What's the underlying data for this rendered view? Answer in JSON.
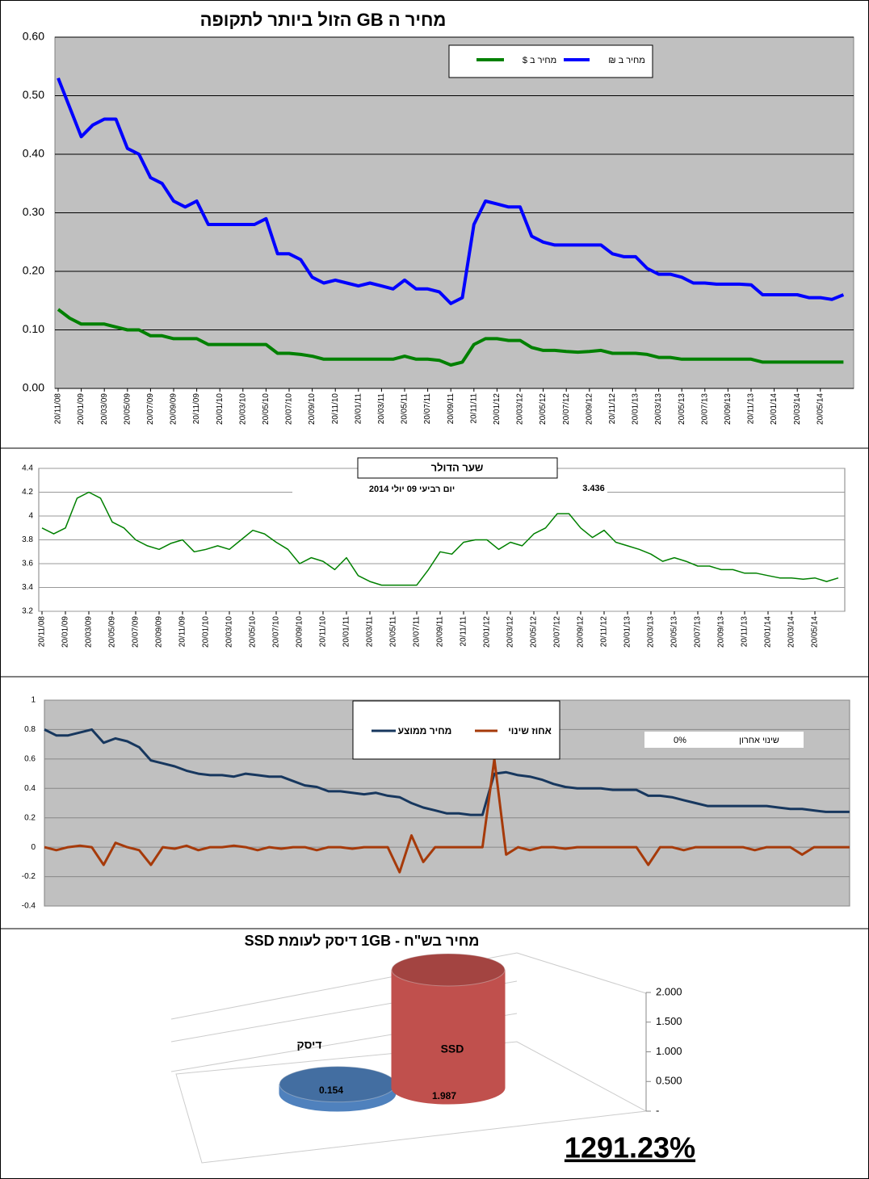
{
  "chart_data": [
    {
      "type": "line",
      "title": "מחיר ה GB הזול ביותר לתקופה",
      "categories": [
        "20/11/08",
        null,
        "20/01/09",
        null,
        "20/03/09",
        null,
        "20/05/09",
        null,
        "20/07/09",
        null,
        "20/09/09",
        null,
        "20/11/09",
        null,
        "20/01/10",
        null,
        "20/03/10",
        null,
        "20/05/10",
        null,
        "20/07/10",
        null,
        "20/09/10",
        null,
        "20/11/10",
        null,
        "20/01/11",
        null,
        "20/03/11",
        null,
        "20/05/11",
        null,
        "20/07/11",
        null,
        "20/09/11",
        null,
        "20/11/11",
        null,
        "20/01/12",
        null,
        "20/03/12",
        null,
        "20/05/12",
        null,
        "20/07/12",
        null,
        "20/09/12",
        null,
        "20/11/12",
        null,
        "20/01/13",
        null,
        "20/03/13",
        null,
        "20/05/13",
        null,
        "20/07/13",
        null,
        "20/09/13",
        null,
        "20/11/13",
        null,
        "20/01/14",
        null,
        "20/03/14",
        null,
        "20/05/14",
        null,
        null
      ],
      "series": [
        {
          "name": "מחיר ב $",
          "color": "#008000",
          "values": [
            0.135,
            0.12,
            0.11,
            0.11,
            0.11,
            0.105,
            0.1,
            0.1,
            0.09,
            0.09,
            0.085,
            0.085,
            0.085,
            0.075,
            0.075,
            0.075,
            0.075,
            0.075,
            0.075,
            0.06,
            0.06,
            0.058,
            0.055,
            0.05,
            0.05,
            0.05,
            0.05,
            0.05,
            0.05,
            0.05,
            0.055,
            0.05,
            0.05,
            0.048,
            0.04,
            0.045,
            0.075,
            0.085,
            0.085,
            0.082,
            0.082,
            0.07,
            0.065,
            0.065,
            0.063,
            0.062,
            0.063,
            0.065,
            0.06,
            0.06,
            0.06,
            0.058,
            0.053,
            0.053,
            0.05,
            0.05,
            0.05,
            0.05,
            0.05,
            0.05,
            0.05,
            0.045,
            0.045,
            0.045,
            0.045,
            0.045,
            0.045,
            0.045,
            0.045
          ]
        },
        {
          "name": "מחיר ב ₪",
          "color": "#0000ff",
          "values": [
            0.53,
            0.48,
            0.43,
            0.45,
            0.46,
            0.46,
            0.41,
            0.4,
            0.36,
            0.35,
            0.32,
            0.31,
            0.32,
            0.28,
            0.28,
            0.28,
            0.28,
            0.28,
            0.29,
            0.23,
            0.23,
            0.22,
            0.19,
            0.18,
            0.185,
            0.18,
            0.175,
            0.18,
            0.175,
            0.17,
            0.185,
            0.17,
            0.17,
            0.165,
            0.145,
            0.155,
            0.28,
            0.32,
            0.315,
            0.31,
            0.31,
            0.26,
            0.25,
            0.245,
            0.245,
            0.245,
            0.245,
            0.245,
            0.23,
            0.225,
            0.225,
            0.205,
            0.195,
            0.195,
            0.19,
            0.18,
            0.18,
            0.178,
            0.178,
            0.178,
            0.177,
            0.16,
            0.16,
            0.16,
            0.16,
            0.155,
            0.155,
            0.152,
            0.16
          ]
        }
      ],
      "ylim": [
        0,
        0.6
      ],
      "yticks": [
        {
          "value": 0,
          "label": "0.00"
        },
        {
          "value": 0.1,
          "label": "0.10"
        },
        {
          "value": 0.2,
          "label": "0.20"
        },
        {
          "value": 0.3,
          "label": "0.30"
        },
        {
          "value": 0.4,
          "label": "0.40"
        },
        {
          "value": 0.5,
          "label": "0.50"
        },
        {
          "value": 0.6,
          "label": "0.60"
        }
      ],
      "grid": true,
      "legend": "top-right"
    },
    {
      "type": "line",
      "title": "שער הדולר",
      "subtitle": "יום רביעי 09 יולי 2014",
      "annotation": "3.436",
      "categories": [
        "20/11/08",
        null,
        "20/01/09",
        null,
        "20/03/09",
        null,
        "20/05/09",
        null,
        "20/07/09",
        null,
        "20/09/09",
        null,
        "20/11/09",
        null,
        "20/01/10",
        null,
        "20/03/10",
        null,
        "20/05/10",
        null,
        "20/07/10",
        null,
        "20/09/10",
        null,
        "20/11/10",
        null,
        "20/01/11",
        null,
        "20/03/11",
        null,
        "20/05/11",
        null,
        "20/07/11",
        null,
        "20/09/11",
        null,
        "20/11/11",
        null,
        "20/01/12",
        null,
        "20/03/12",
        null,
        "20/05/12",
        null,
        "20/07/12",
        null,
        "20/09/12",
        null,
        "20/11/12",
        null,
        "20/01/13",
        null,
        "20/03/13",
        null,
        "20/05/13",
        null,
        "20/07/13",
        null,
        "20/09/13",
        null,
        "20/11/13",
        null,
        "20/01/14",
        null,
        "20/03/14",
        null,
        "20/05/14",
        null,
        null
      ],
      "color": "#008000",
      "values": [
        3.9,
        3.85,
        3.9,
        4.15,
        4.2,
        4.15,
        3.95,
        3.9,
        3.8,
        3.75,
        3.72,
        3.77,
        3.8,
        3.7,
        3.72,
        3.75,
        3.72,
        3.8,
        3.88,
        3.85,
        3.78,
        3.72,
        3.6,
        3.65,
        3.62,
        3.55,
        3.65,
        3.5,
        3.45,
        3.42,
        3.42,
        3.42,
        3.42,
        3.55,
        3.7,
        3.68,
        3.78,
        3.8,
        3.8,
        3.72,
        3.78,
        3.75,
        3.85,
        3.9,
        4.02,
        4.02,
        3.9,
        3.82,
        3.88,
        3.78,
        3.75,
        3.72,
        3.68,
        3.62,
        3.65,
        3.62,
        3.58,
        3.58,
        3.55,
        3.55,
        3.52,
        3.52,
        3.5,
        3.48,
        3.48,
        3.47,
        3.48,
        3.45,
        3.48
      ],
      "ylim": [
        3.2,
        4.4
      ],
      "yticks": [
        3.2,
        3.4,
        3.6,
        3.8,
        4,
        4.2,
        4.4
      ],
      "grid": true
    },
    {
      "type": "line",
      "series": [
        {
          "name": "מחיר ממוצע",
          "color": "#17375e",
          "values": [
            0.8,
            0.76,
            0.76,
            0.78,
            0.8,
            0.71,
            0.74,
            0.72,
            0.68,
            0.59,
            0.57,
            0.55,
            0.52,
            0.5,
            0.49,
            0.49,
            0.48,
            0.5,
            0.49,
            0.48,
            0.48,
            0.45,
            0.42,
            0.41,
            0.38,
            0.38,
            0.37,
            0.36,
            0.37,
            0.35,
            0.34,
            0.3,
            0.27,
            0.25,
            0.23,
            0.23,
            0.22,
            0.22,
            0.5,
            0.51,
            0.49,
            0.48,
            0.46,
            0.43,
            0.41,
            0.4,
            0.4,
            0.4,
            0.39,
            0.39,
            0.39,
            0.35,
            0.35,
            0.34,
            0.32,
            0.3,
            0.28,
            0.28,
            0.28,
            0.28,
            0.28,
            0.28,
            0.27,
            0.26,
            0.26,
            0.25,
            0.24,
            0.24,
            0.24
          ]
        },
        {
          "name": "אחוז שינוי",
          "color": "#a63a0a",
          "values": [
            0,
            -0.02,
            0,
            0.01,
            0,
            -0.12,
            0.03,
            0,
            -0.02,
            -0.12,
            0,
            -0.01,
            0.01,
            -0.02,
            0,
            0,
            0.01,
            0,
            -0.02,
            0,
            -0.01,
            0,
            0,
            -0.02,
            0,
            0,
            -0.01,
            0,
            0,
            0,
            -0.17,
            0.08,
            -0.1,
            0,
            0,
            0,
            0,
            0,
            0.6,
            -0.05,
            0,
            -0.02,
            0,
            0,
            -0.01,
            0,
            0,
            0,
            0,
            0,
            0,
            -0.12,
            0,
            0,
            -0.02,
            0,
            0,
            0,
            0,
            0,
            -0.02,
            0,
            0,
            0,
            -0.05,
            0,
            0,
            0,
            0
          ]
        }
      ],
      "ylim": [
        -0.4,
        1
      ],
      "yticks": [
        -0.4,
        -0.2,
        0,
        0.2,
        0.4,
        0.6,
        0.8,
        1
      ],
      "grid": true,
      "legend": "top-center",
      "annotation_label": "שינוי אחרון",
      "annotation": "0%"
    },
    {
      "type": "bar3d",
      "title": "מחיר בש\"ח - 1GB דיסק לעומת SSD",
      "categories": [
        "דיסק",
        "SSD"
      ],
      "values": [
        0.154,
        1.987
      ],
      "colors": [
        "#4f81bd",
        "#c0504d"
      ],
      "ylim": [
        0,
        2
      ],
      "yticks": [
        {
          "value": 0,
          "label": "-"
        },
        {
          "value": 0.5,
          "label": "0.500"
        },
        {
          "value": 1,
          "label": "1.000"
        },
        {
          "value": 1.5,
          "label": "1.500"
        },
        {
          "value": 2,
          "label": "2.000"
        }
      ],
      "annotation": "1291.23%"
    }
  ]
}
